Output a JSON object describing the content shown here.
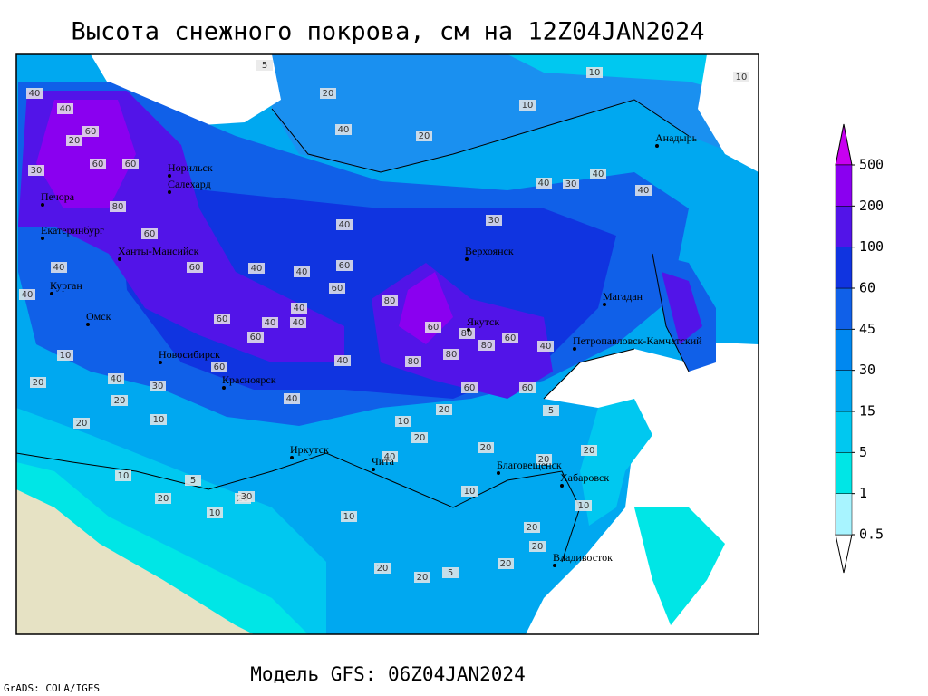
{
  "header": {
    "title": "Высота снежного покрова, см на 12Z04JAN2024"
  },
  "footer": {
    "model": "Модель GFS: 06Z04JAN2024",
    "credit": "GrADS: COLA/IGES"
  },
  "legend": {
    "levels": [
      0.5,
      1,
      5,
      15,
      30,
      45,
      60,
      100,
      200,
      500
    ],
    "colors": [
      "#ffffff",
      "#a8f4ff",
      "#00e6e6",
      "#00c8f0",
      "#00a8f0",
      "#0088f0",
      "#1060e8",
      "#1034e0",
      "#5214e8",
      "#8a00f0",
      "#c800f0"
    ]
  },
  "cities": [
    "Анадырь",
    "Норильск",
    "Салехард",
    "Печора",
    "Екатеринбург",
    "Ханты-Мансийск",
    "Верхоянск",
    "Курган",
    "Магадан",
    "Омск",
    "Якутск",
    "Петропавловск-Камчатский",
    "Новосибирск",
    "Красноярск",
    "Иркутск",
    "Чита",
    "Благовещенск",
    "Хабаровск",
    "Владивосток"
  ],
  "contour_labels": [
    5,
    20,
    10,
    10,
    40,
    40,
    20,
    10,
    20,
    60,
    60,
    60,
    80,
    60,
    40,
    30,
    40,
    40,
    30,
    40,
    40,
    30,
    40,
    40,
    60,
    40,
    40,
    60,
    80,
    60,
    60,
    40,
    60,
    40,
    40,
    60,
    80,
    80,
    80,
    60,
    40,
    80,
    60,
    60,
    60,
    40,
    40,
    20,
    40,
    10,
    20,
    10,
    20,
    30,
    20,
    20,
    40,
    20,
    10,
    20,
    10,
    5,
    20,
    20,
    10,
    20,
    5,
    20,
    10,
    10,
    30,
    20,
    20,
    5,
    20,
    10,
    20
  ]
}
